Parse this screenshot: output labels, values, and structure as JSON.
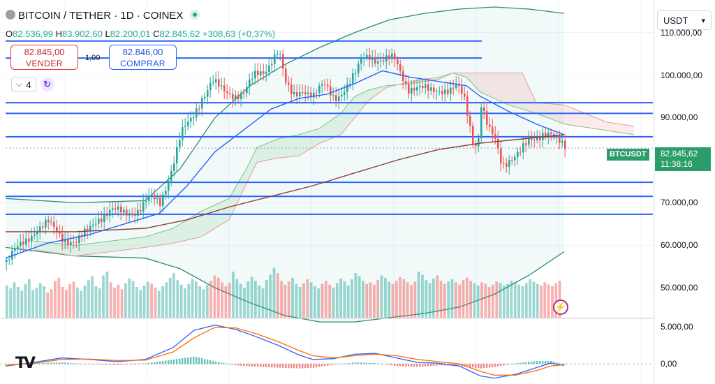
{
  "header": {
    "title": "BITCOIN / TETHER · 1D · COINEX",
    "ohlc": {
      "o_label": "O",
      "o": "82.536,99",
      "h_label": "H",
      "h": "83.902,60",
      "l_label": "L",
      "l": "82.200,01",
      "c_label": "C",
      "c": "82.845,62",
      "change": "+308,63 (+0,37%)"
    }
  },
  "trade": {
    "sell_price": "82.845,00",
    "sell_label": "VENDER",
    "buy_price": "82.846,00",
    "buy_label": "COMPRAR",
    "spread": "1,00"
  },
  "indicators": {
    "count": "4"
  },
  "currency": {
    "selected": "USDT"
  },
  "price_badge": {
    "symbol": "BTCUSDT",
    "price": "82.845,62",
    "countdown": "11:38:16"
  },
  "colors": {
    "up": "#26a69a",
    "down": "#ef5350",
    "level_line": "#2962ff",
    "ma_fast": "#2962ff",
    "ma_slow": "#8d3b3b"
  },
  "chart_data": [
    {
      "type": "candlestick",
      "y_axis_ticks": [
        "110.000,00",
        "100.000,00",
        "90.000,00",
        "70.000,00",
        "60.000,00",
        "50.000,00"
      ],
      "y_tick_values": [
        110000,
        100000,
        90000,
        70000,
        60000,
        50000
      ],
      "ylim": [
        43000,
        116000
      ],
      "horizontal_levels": [
        108000,
        104000,
        93500,
        91000,
        85500,
        74800,
        71500,
        67300
      ],
      "close_path": [
        [
          0,
          56000
        ],
        [
          20,
          60000
        ],
        [
          40,
          63500
        ],
        [
          60,
          65000
        ],
        [
          80,
          62000
        ],
        [
          100,
          60500
        ],
        [
          115,
          63000
        ],
        [
          130,
          66500
        ],
        [
          150,
          68000
        ],
        [
          170,
          67500
        ],
        [
          190,
          68500
        ],
        [
          205,
          71000
        ],
        [
          220,
          70000
        ],
        [
          230,
          75000
        ],
        [
          240,
          80000
        ],
        [
          250,
          86000
        ],
        [
          265,
          89500
        ],
        [
          280,
          95000
        ],
        [
          295,
          98500
        ],
        [
          310,
          96000
        ],
        [
          325,
          95500
        ],
        [
          340,
          96000
        ],
        [
          355,
          99500
        ],
        [
          370,
          101000
        ],
        [
          380,
          104000
        ],
        [
          390,
          106000
        ],
        [
          400,
          97500
        ],
        [
          410,
          95000
        ],
        [
          425,
          97000
        ],
        [
          440,
          95000
        ],
        [
          455,
          97500
        ],
        [
          470,
          95000
        ],
        [
          480,
          96000
        ],
        [
          490,
          97500
        ],
        [
          500,
          100000
        ],
        [
          510,
          104500
        ],
        [
          520,
          105000
        ],
        [
          530,
          103500
        ],
        [
          540,
          103000
        ],
        [
          555,
          104000
        ],
        [
          565,
          101000
        ],
        [
          575,
          97000
        ],
        [
          590,
          96500
        ],
        [
          605,
          96500
        ],
        [
          620,
          97000
        ],
        [
          635,
          96000
        ],
        [
          645,
          97000
        ],
        [
          655,
          95000
        ],
        [
          662,
          90000
        ],
        [
          668,
          85000
        ],
        [
          675,
          83500
        ],
        [
          680,
          93000
        ],
        [
          690,
          87000
        ],
        [
          700,
          84500
        ],
        [
          710,
          79000
        ],
        [
          720,
          80500
        ],
        [
          735,
          81500
        ],
        [
          750,
          84500
        ],
        [
          760,
          85500
        ],
        [
          770,
          87000
        ],
        [
          780,
          86000
        ],
        [
          790,
          84000
        ],
        [
          800,
          82800
        ]
      ],
      "ma_fast": [
        [
          0,
          57000
        ],
        [
          60,
          60500
        ],
        [
          120,
          62500
        ],
        [
          180,
          65500
        ],
        [
          220,
          67500
        ],
        [
          260,
          74000
        ],
        [
          300,
          82000
        ],
        [
          340,
          87000
        ],
        [
          380,
          92000
        ],
        [
          420,
          94500
        ],
        [
          460,
          95500
        ],
        [
          500,
          98000
        ],
        [
          540,
          101000
        ],
        [
          580,
          99500
        ],
        [
          620,
          98500
        ],
        [
          660,
          97500
        ],
        [
          680,
          95000
        ],
        [
          720,
          91500
        ],
        [
          760,
          88500
        ],
        [
          800,
          86000
        ]
      ],
      "ma_slow": [
        [
          0,
          63200
        ],
        [
          100,
          63200
        ],
        [
          200,
          64000
        ],
        [
          260,
          66000
        ],
        [
          320,
          69000
        ],
        [
          380,
          71500
        ],
        [
          440,
          74000
        ],
        [
          500,
          77000
        ],
        [
          560,
          80000
        ],
        [
          620,
          82500
        ],
        [
          680,
          84000
        ],
        [
          740,
          85000
        ],
        [
          800,
          86000
        ]
      ],
      "bb_upper": [
        [
          0,
          71000
        ],
        [
          100,
          70000
        ],
        [
          200,
          70500
        ],
        [
          250,
          78000
        ],
        [
          300,
          90000
        ],
        [
          350,
          97500
        ],
        [
          400,
          102500
        ],
        [
          450,
          106500
        ],
        [
          500,
          110000
        ],
        [
          550,
          113000
        ],
        [
          600,
          114500
        ],
        [
          650,
          115500
        ],
        [
          700,
          116000
        ],
        [
          750,
          115500
        ],
        [
          800,
          114500
        ]
      ],
      "bb_lower": [
        [
          0,
          59500
        ],
        [
          100,
          57500
        ],
        [
          200,
          57000
        ],
        [
          250,
          54500
        ],
        [
          300,
          50000
        ],
        [
          350,
          46500
        ],
        [
          400,
          43500
        ],
        [
          450,
          42000
        ],
        [
          500,
          42000
        ],
        [
          550,
          43000
        ],
        [
          600,
          44000
        ],
        [
          650,
          45500
        ],
        [
          700,
          48500
        ],
        [
          750,
          53000
        ],
        [
          800,
          58500
        ]
      ],
      "cloud_a": [
        [
          40,
          61000
        ],
        [
          100,
          60000
        ],
        [
          150,
          61000
        ],
        [
          200,
          62000
        ],
        [
          240,
          64000
        ],
        [
          280,
          68000
        ],
        [
          320,
          71000
        ],
        [
          345,
          78000
        ],
        [
          360,
          83000
        ],
        [
          390,
          85000
        ],
        [
          420,
          86000
        ],
        [
          450,
          87500
        ],
        [
          480,
          91000
        ],
        [
          500,
          95000
        ],
        [
          520,
          96500
        ],
        [
          545,
          97500
        ],
        [
          580,
          98000
        ],
        [
          620,
          99000
        ],
        [
          640,
          100500
        ],
        [
          660,
          99500
        ],
        [
          680,
          96000
        ],
        [
          720,
          93000
        ],
        [
          760,
          91000
        ],
        [
          800,
          88500
        ],
        [
          860,
          87000
        ],
        [
          900,
          86000
        ]
      ],
      "cloud_b": [
        [
          40,
          59000
        ],
        [
          100,
          57500
        ],
        [
          150,
          58500
        ],
        [
          200,
          59500
        ],
        [
          240,
          60500
        ],
        [
          280,
          62000
        ],
        [
          320,
          66000
        ],
        [
          345,
          74500
        ],
        [
          360,
          79500
        ],
        [
          390,
          80500
        ],
        [
          420,
          81000
        ],
        [
          450,
          84000
        ],
        [
          480,
          86000
        ],
        [
          500,
          90000
        ],
        [
          520,
          94000
        ],
        [
          545,
          97000
        ],
        [
          580,
          98500
        ],
        [
          620,
          99500
        ],
        [
          640,
          100500
        ],
        [
          660,
          100500
        ],
        [
          700,
          100500
        ],
        [
          740,
          100500
        ],
        [
          760,
          93500
        ],
        [
          800,
          93000
        ],
        [
          860,
          89000
        ],
        [
          900,
          88000
        ]
      ]
    },
    {
      "type": "bar",
      "name": "volume",
      "values": [
        42,
        38,
        46,
        40,
        35,
        44,
        50,
        36,
        39,
        45,
        41,
        33,
        37,
        48,
        52,
        40,
        36,
        44,
        47,
        39,
        35,
        42,
        49,
        54,
        41,
        38,
        55,
        60,
        46,
        39,
        43,
        37,
        45,
        51,
        48,
        40,
        36,
        42,
        47,
        44,
        39,
        35,
        41,
        46,
        52,
        58,
        49,
        43,
        38,
        44,
        50,
        47,
        41,
        37,
        43,
        48,
        55,
        52,
        46,
        41,
        45,
        60,
        50,
        44,
        39,
        47,
        53,
        48,
        42,
        38,
        49,
        56,
        65,
        58,
        48,
        43,
        47,
        52,
        44,
        40,
        45,
        50,
        46,
        41,
        38,
        44,
        48,
        43,
        39,
        45,
        51,
        47,
        42,
        50,
        58,
        54,
        48,
        44,
        46,
        43,
        49,
        55,
        52,
        47,
        44,
        48,
        53,
        50,
        46,
        43,
        47,
        60,
        56,
        49,
        45,
        51,
        55,
        48,
        44,
        47,
        50,
        46,
        43,
        49,
        52,
        48,
        45,
        42,
        46,
        44,
        40,
        43,
        47,
        45,
        42,
        44,
        48,
        46,
        43,
        41,
        45,
        50,
        47,
        44,
        42,
        46,
        43,
        41,
        45,
        48
      ]
    },
    {
      "type": "line",
      "name": "macd",
      "y_axis_ticks": [
        "5.000,00",
        "0,00"
      ],
      "y_tick_values": [
        5000,
        0
      ],
      "ylim": [
        -2500,
        6000
      ],
      "macd_line": [
        [
          0,
          -300
        ],
        [
          40,
          200
        ],
        [
          80,
          800
        ],
        [
          120,
          600
        ],
        [
          160,
          300
        ],
        [
          200,
          600
        ],
        [
          240,
          2200
        ],
        [
          270,
          4500
        ],
        [
          300,
          5200
        ],
        [
          330,
          4600
        ],
        [
          360,
          3600
        ],
        [
          390,
          2500
        ],
        [
          420,
          1200
        ],
        [
          440,
          600
        ],
        [
          470,
          700
        ],
        [
          500,
          1300
        ],
        [
          530,
          1400
        ],
        [
          560,
          800
        ],
        [
          590,
          200
        ],
        [
          620,
          100
        ],
        [
          650,
          -300
        ],
        [
          680,
          -1600
        ],
        [
          700,
          -1900
        ],
        [
          730,
          -1400
        ],
        [
          760,
          -500
        ],
        [
          780,
          100
        ],
        [
          800,
          -200
        ]
      ],
      "signal_line": [
        [
          0,
          -200
        ],
        [
          40,
          100
        ],
        [
          80,
          600
        ],
        [
          120,
          650
        ],
        [
          160,
          450
        ],
        [
          200,
          500
        ],
        [
          240,
          1600
        ],
        [
          270,
          3500
        ],
        [
          300,
          4900
        ],
        [
          330,
          4800
        ],
        [
          360,
          4000
        ],
        [
          390,
          3000
        ],
        [
          420,
          1800
        ],
        [
          440,
          1100
        ],
        [
          470,
          800
        ],
        [
          500,
          1100
        ],
        [
          530,
          1300
        ],
        [
          560,
          1100
        ],
        [
          590,
          600
        ],
        [
          620,
          300
        ],
        [
          650,
          0
        ],
        [
          680,
          -1000
        ],
        [
          700,
          -1500
        ],
        [
          730,
          -1500
        ],
        [
          760,
          -900
        ],
        [
          780,
          -300
        ],
        [
          800,
          -100
        ]
      ]
    }
  ]
}
